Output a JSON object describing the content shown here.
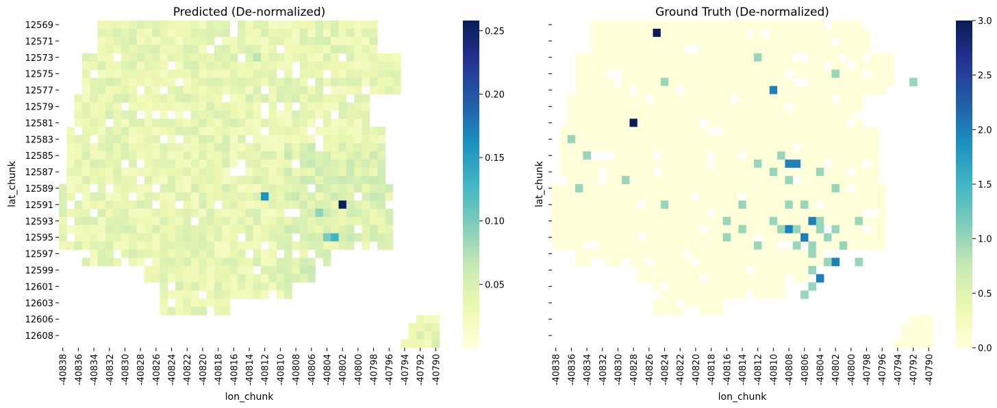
{
  "chart_data": [
    {
      "type": "heatmap",
      "title": "Predicted (De-normalized)",
      "xlabel": "lon_chunk",
      "ylabel": "lat_chunk",
      "x_tick_labels": [
        "-40838",
        "-40836",
        "-40834",
        "-40832",
        "-40830",
        "-40828",
        "-40826",
        "-40824",
        "-40822",
        "-40820",
        "-40818",
        "-40816",
        "-40814",
        "-40812",
        "-40810",
        "-40808",
        "-40806",
        "-40804",
        "-40802",
        "-40800",
        "-40798",
        "-40796",
        "-40794",
        "-40792",
        "-40790"
      ],
      "y_tick_labels": [
        "12569",
        "12571",
        "12573",
        "12575",
        "12577",
        "12579",
        "12581",
        "12583",
        "12585",
        "12587",
        "12589",
        "12591",
        "12593",
        "12595",
        "12597",
        "12599",
        "12601",
        "12603",
        "12606",
        "12608"
      ],
      "colormap": "YlGnBu",
      "colorbar_ticks": [
        "0.05",
        "0.10",
        "0.15",
        "0.20",
        "0.25"
      ],
      "colorbar_range": [
        0.0,
        0.258
      ],
      "highlights": [
        {
          "lat": "12591",
          "lon": "-40802",
          "value": 0.255
        },
        {
          "lat": "12590",
          "lon": "-40812",
          "value": 0.16
        },
        {
          "lat": "12595",
          "lon": "-40803",
          "value": 0.13
        },
        {
          "lat": "12595",
          "lon": "-40804",
          "value": 0.1
        },
        {
          "lat": "12592",
          "lon": "-40805",
          "value": 0.09
        },
        {
          "lat": "12573",
          "lon": "-40813",
          "value": 0.07
        }
      ],
      "typical_value": 0.03
    },
    {
      "type": "heatmap",
      "title": "Ground Truth (De-normalized)",
      "xlabel": "lon_chunk",
      "ylabel": "lat_chunk",
      "x_tick_labels": [
        "-40838",
        "-40836",
        "-40834",
        "-40832",
        "-40830",
        "-40828",
        "-40826",
        "-40824",
        "-40822",
        "-40820",
        "-40818",
        "-40816",
        "-40814",
        "-40812",
        "-40810",
        "-40808",
        "-40806",
        "-40804",
        "-40802",
        "-40800",
        "-40798",
        "-40796",
        "-40794",
        "-40792",
        "-40790"
      ],
      "y_tick_labels": [
        "",
        "",
        "",
        "",
        "",
        "",
        "",
        "",
        "",
        "",
        "",
        "",
        "",
        "",
        "",
        "",
        "",
        "",
        "",
        ""
      ],
      "colormap": "YlGnBu",
      "colorbar_ticks": [
        "0.0",
        "0.5",
        "1.0",
        "1.5",
        "2.0",
        "2.5",
        "3.0"
      ],
      "colorbar_range": [
        0.0,
        3.0
      ],
      "highlights": [
        {
          "lat": "12570",
          "lon": "-40825",
          "value": 3.0
        },
        {
          "lat": "12581",
          "lon": "-40828",
          "value": 3.0
        },
        {
          "lat": "12577",
          "lon": "-40810",
          "value": 2.0
        },
        {
          "lat": "12586",
          "lon": "-40808",
          "value": 2.0
        },
        {
          "lat": "12586",
          "lon": "-40807",
          "value": 2.0
        },
        {
          "lat": "12593",
          "lon": "-40805",
          "value": 2.0
        },
        {
          "lat": "12594",
          "lon": "-40808",
          "value": 2.0
        },
        {
          "lat": "12595",
          "lon": "-40806",
          "value": 2.0
        },
        {
          "lat": "12598",
          "lon": "-40802",
          "value": 2.0
        },
        {
          "lat": "12600",
          "lon": "-40804",
          "value": 2.0
        },
        {
          "lat": "12573",
          "lon": "-40812",
          "value": 1.0
        },
        {
          "lat": "12575",
          "lon": "-40802",
          "value": 1.0
        },
        {
          "lat": "12576",
          "lon": "-40824",
          "value": 1.0
        },
        {
          "lat": "12576",
          "lon": "-40792",
          "value": 1.0
        },
        {
          "lat": "12583",
          "lon": "-40836",
          "value": 1.0
        },
        {
          "lat": "12585",
          "lon": "-40834",
          "value": 1.0
        },
        {
          "lat": "12586",
          "lon": "-40812",
          "value": 1.0
        },
        {
          "lat": "12585",
          "lon": "-40809",
          "value": 1.0
        },
        {
          "lat": "12587",
          "lon": "-40810",
          "value": 1.0
        },
        {
          "lat": "12587",
          "lon": "-40804",
          "value": 1.0
        },
        {
          "lat": "12588",
          "lon": "-40829",
          "value": 1.0
        },
        {
          "lat": "12588",
          "lon": "-40808",
          "value": 1.0
        },
        {
          "lat": "12589",
          "lon": "-40835",
          "value": 1.0
        },
        {
          "lat": "12589",
          "lon": "-40802",
          "value": 1.0
        },
        {
          "lat": "12591",
          "lon": "-40824",
          "value": 1.0
        },
        {
          "lat": "12591",
          "lon": "-40814",
          "value": 1.0
        },
        {
          "lat": "12591",
          "lon": "-40808",
          "value": 1.0
        },
        {
          "lat": "12591",
          "lon": "-40806",
          "value": 1.0
        },
        {
          "lat": "12593",
          "lon": "-40816",
          "value": 1.0
        },
        {
          "lat": "12593",
          "lon": "-40810",
          "value": 1.0
        },
        {
          "lat": "12593",
          "lon": "-40804",
          "value": 1.0
        },
        {
          "lat": "12593",
          "lon": "-40799",
          "value": 1.0
        },
        {
          "lat": "12594",
          "lon": "-40814",
          "value": 1.0
        },
        {
          "lat": "12594",
          "lon": "-40809",
          "value": 1.0
        },
        {
          "lat": "12594",
          "lon": "-40807",
          "value": 1.0
        },
        {
          "lat": "12594",
          "lon": "-40804",
          "value": 1.0
        },
        {
          "lat": "12594",
          "lon": "-40802",
          "value": 1.0
        },
        {
          "lat": "12595",
          "lon": "-40816",
          "value": 1.0
        },
        {
          "lat": "12595",
          "lon": "-40803",
          "value": 1.0
        },
        {
          "lat": "12596",
          "lon": "-40812",
          "value": 1.0
        },
        {
          "lat": "12596",
          "lon": "-40807",
          "value": 1.0
        },
        {
          "lat": "12596",
          "lon": "-40805",
          "value": 1.0
        },
        {
          "lat": "12596",
          "lon": "-40801",
          "value": 1.0
        },
        {
          "lat": "12597",
          "lon": "-40805",
          "value": 1.0
        },
        {
          "lat": "12598",
          "lon": "-40803",
          "value": 1.0
        },
        {
          "lat": "12598",
          "lon": "-40799",
          "value": 1.0
        },
        {
          "lat": "12599",
          "lon": "-40805",
          "value": 1.0
        },
        {
          "lat": "12601",
          "lon": "-40805",
          "value": 1.0
        },
        {
          "lat": "12602",
          "lon": "-40806",
          "value": 1.0
        }
      ],
      "typical_value": 0.0
    }
  ]
}
